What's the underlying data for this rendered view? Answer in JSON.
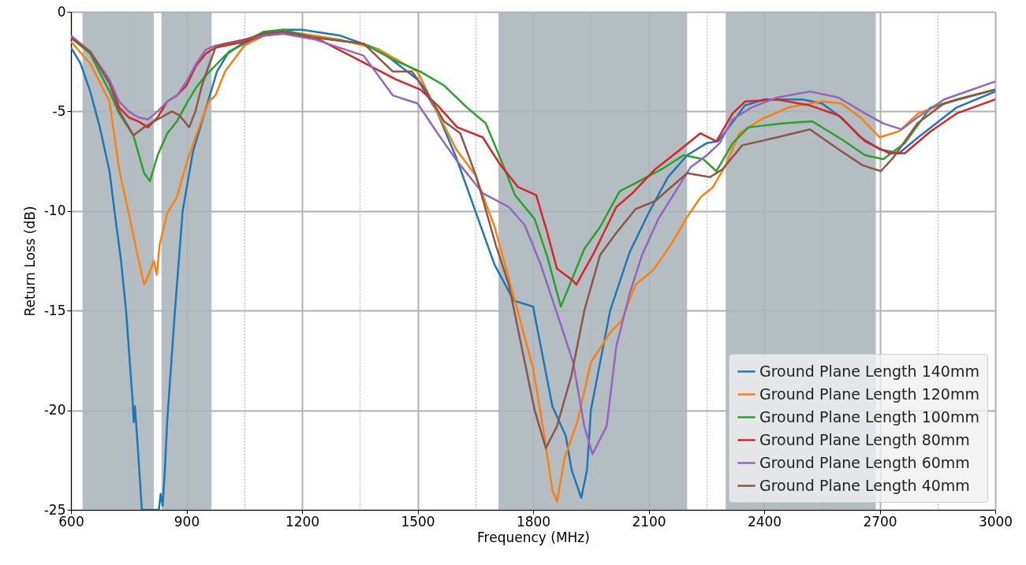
{
  "chart_data": {
    "type": "line",
    "xlabel": "Frequency (MHz)",
    "ylabel": "Return Loss (dB)",
    "xlim": [
      600,
      3000
    ],
    "ylim": [
      -25,
      0
    ],
    "xticks": [
      600,
      {
        "value": 750,
        "label": null
      },
      900,
      {
        "value": 1050,
        "label": null
      },
      1200,
      {
        "value": 1350,
        "label": null
      },
      1500,
      {
        "value": 1650,
        "label": null
      },
      1800,
      {
        "value": 1950,
        "label": null
      },
      2100,
      {
        "value": 2250,
        "label": null
      },
      2400,
      {
        "value": 2550,
        "label": null
      },
      2700,
      {
        "value": 2850,
        "label": null
      },
      3000
    ],
    "yticks": [
      -25,
      -20,
      -15,
      -10,
      -5,
      0
    ],
    "grid": true,
    "legend": "bottom right",
    "line_style": "solid",
    "marker": "none",
    "bands": [
      {
        "axis": "x",
        "from": 630,
        "to": 815,
        "color": "#aab4ba"
      },
      {
        "axis": "x",
        "from": 835,
        "to": 965,
        "color": "#aab4ba"
      },
      {
        "axis": "x",
        "from": 1710,
        "to": 2200,
        "color": "#aab4ba"
      },
      {
        "axis": "x",
        "from": 2300,
        "to": 2690,
        "color": "#aab4ba"
      }
    ],
    "series": [
      {
        "name": "Ground Plane Length 140mm",
        "color": "#1f77b4",
        "x": [
          600,
          625,
          650,
          675,
          700,
          713,
          730,
          743,
          760,
          763,
          766,
          774,
          784,
          828,
          833,
          838,
          843,
          850,
          870,
          890,
          917,
          948,
          979,
          1010,
          1050,
          1100,
          1150,
          1200,
          1300,
          1400,
          1500,
          1550,
          1600,
          1650,
          1700,
          1750,
          1800,
          1820,
          1850,
          1885,
          1900,
          1925,
          1940,
          1950,
          2000,
          2050,
          2100,
          2150,
          2200,
          2250,
          2280,
          2320,
          2350,
          2400,
          2500,
          2550,
          2600,
          2650,
          2700,
          2750,
          2800,
          2900,
          3000
        ],
        "values": [
          -1.8,
          -2.6,
          -4.0,
          -5.8,
          -8.0,
          -10.0,
          -12.5,
          -15.0,
          -19.5,
          -20.6,
          -19.8,
          -22.0,
          -25.0,
          -25.0,
          -24.2,
          -24.8,
          -23.3,
          -20.5,
          -15.0,
          -10.0,
          -7.0,
          -5.0,
          -3.0,
          -2.0,
          -1.6,
          -1.1,
          -0.9,
          -0.9,
          -1.2,
          -1.9,
          -3.4,
          -5.0,
          -7.3,
          -10.0,
          -12.7,
          -14.5,
          -14.8,
          -16.8,
          -19.8,
          -21.3,
          -23.0,
          -24.4,
          -23.0,
          -20.0,
          -15.0,
          -12.1,
          -10.1,
          -8.3,
          -7.2,
          -6.6,
          -6.5,
          -5.5,
          -4.7,
          -4.4,
          -4.4,
          -4.6,
          -5.3,
          -6.3,
          -6.9,
          -7.1,
          -6.3,
          -4.8,
          -4.0
        ]
      },
      {
        "name": "Ground Plane Length 120mm",
        "color": "#ff7f0e",
        "x": [
          600,
          650,
          700,
          725,
          750,
          765,
          775,
          790,
          800,
          815,
          823,
          830,
          850,
          875,
          900,
          925,
          958,
          975,
          1000,
          1050,
          1100,
          1150,
          1200,
          1300,
          1400,
          1500,
          1550,
          1600,
          1650,
          1700,
          1750,
          1800,
          1825,
          1850,
          1862,
          1882,
          1916,
          1950,
          2000,
          2030,
          2066,
          2110,
          2140,
          2167,
          2200,
          2235,
          2267,
          2300,
          2335,
          2392,
          2463,
          2550,
          2600,
          2650,
          2700,
          2750,
          2800,
          2900,
          3000
        ],
        "values": [
          -1.5,
          -2.6,
          -4.5,
          -7.9,
          -10.1,
          -11.5,
          -12.4,
          -13.7,
          -13.3,
          -12.5,
          -13.2,
          -11.7,
          -10.1,
          -9.3,
          -7.6,
          -6.2,
          -4.5,
          -4.2,
          -3.0,
          -1.7,
          -1.2,
          -1.0,
          -1.1,
          -1.4,
          -1.9,
          -3.0,
          -5.0,
          -6.9,
          -8.2,
          -10.8,
          -14.3,
          -17.9,
          -20.8,
          -24.0,
          -24.6,
          -22.4,
          -20.5,
          -17.6,
          -16.1,
          -15.5,
          -13.7,
          -13.0,
          -12.2,
          -11.4,
          -10.3,
          -9.3,
          -8.8,
          -7.7,
          -6.1,
          -5.4,
          -4.8,
          -4.5,
          -4.6,
          -5.3,
          -6.3,
          -6.0,
          -5.1,
          -4.4,
          -3.9
        ]
      },
      {
        "name": "Ground Plane Length 100mm",
        "color": "#2ca02c",
        "x": [
          600,
          650,
          700,
          725,
          762,
          790,
          805,
          825,
          850,
          875,
          900,
          925,
          950,
          975,
          1000,
          1050,
          1100,
          1150,
          1235,
          1360,
          1436,
          1507,
          1569,
          1628,
          1677,
          1720,
          1753,
          1804,
          1837,
          1872,
          1933,
          1974,
          2025,
          2066,
          2134,
          2191,
          2242,
          2276,
          2318,
          2359,
          2450,
          2525,
          2601,
          2662,
          2709,
          2765,
          2832,
          2900,
          3000
        ],
        "values": [
          -1.3,
          -2.1,
          -4.0,
          -5.1,
          -6.2,
          -8.1,
          -8.5,
          -7.2,
          -6.1,
          -5.5,
          -4.6,
          -3.8,
          -3.2,
          -2.7,
          -2.2,
          -1.5,
          -1.0,
          -0.9,
          -1.3,
          -1.6,
          -2.4,
          -3.0,
          -3.7,
          -4.8,
          -5.6,
          -7.6,
          -9.2,
          -10.4,
          -12.3,
          -14.8,
          -11.9,
          -10.8,
          -9.0,
          -8.6,
          -7.9,
          -7.2,
          -7.4,
          -8.0,
          -6.6,
          -5.8,
          -5.6,
          -5.5,
          -6.4,
          -7.2,
          -7.4,
          -6.6,
          -4.8,
          -4.4,
          -3.9
        ]
      },
      {
        "name": "Ground Plane Length 80mm",
        "color": "#d62728",
        "x": [
          600,
          650,
          700,
          725,
          750,
          775,
          800,
          825,
          850,
          875,
          900,
          925,
          950,
          975,
          1000,
          1050,
          1100,
          1150,
          1235,
          1345,
          1444,
          1507,
          1552,
          1603,
          1669,
          1712,
          1761,
          1808,
          1837,
          1862,
          1904,
          1912,
          1958,
          2016,
          2058,
          2117,
          2183,
          2234,
          2276,
          2318,
          2351,
          2434,
          2519,
          2593,
          2662,
          2724,
          2765,
          2832,
          2900,
          3000
        ],
        "values": [
          -1.3,
          -2.0,
          -3.5,
          -4.8,
          -5.3,
          -5.5,
          -5.8,
          -5.3,
          -4.5,
          -4.2,
          -3.7,
          -2.7,
          -2.1,
          -1.8,
          -1.7,
          -1.5,
          -1.2,
          -1.1,
          -1.3,
          -2.4,
          -3.4,
          -3.9,
          -4.7,
          -5.8,
          -6.3,
          -7.6,
          -8.8,
          -9.2,
          -11.1,
          -12.9,
          -13.5,
          -13.7,
          -12.1,
          -9.8,
          -9.1,
          -7.9,
          -6.9,
          -6.1,
          -6.5,
          -5.1,
          -4.5,
          -4.4,
          -4.7,
          -5.2,
          -6.5,
          -7.1,
          -7.1,
          -6.0,
          -5.1,
          -4.4
        ]
      },
      {
        "name": "Ground Plane Length 60mm",
        "color": "#9467bd",
        "x": [
          600,
          650,
          700,
          725,
          750,
          775,
          800,
          825,
          850,
          875,
          900,
          925,
          950,
          975,
          1000,
          1050,
          1100,
          1150,
          1235,
          1360,
          1436,
          1500,
          1552,
          1603,
          1669,
          1737,
          1778,
          1820,
          1870,
          1904,
          1933,
          1954,
          1991,
          2016,
          2050,
          2083,
          2125,
          2167,
          2209,
          2251,
          2284,
          2318,
          2367,
          2434,
          2519,
          2593,
          2662,
          2709,
          2757,
          2798,
          2867,
          3000
        ],
        "values": [
          -1.2,
          -2.0,
          -3.4,
          -4.5,
          -5.0,
          -5.3,
          -5.4,
          -5.0,
          -4.5,
          -4.2,
          -3.5,
          -2.6,
          -1.9,
          -1.7,
          -1.6,
          -1.4,
          -1.2,
          -1.1,
          -1.4,
          -2.2,
          -4.2,
          -4.6,
          -6.1,
          -7.5,
          -9.1,
          -9.8,
          -10.7,
          -12.7,
          -15.6,
          -17.6,
          -20.8,
          -22.2,
          -20.8,
          -16.8,
          -14.2,
          -12.2,
          -10.4,
          -9.1,
          -7.8,
          -7.2,
          -6.6,
          -5.4,
          -4.8,
          -4.3,
          -4.0,
          -4.3,
          -5.1,
          -5.6,
          -5.9,
          -5.3,
          -4.4,
          -3.5
        ]
      },
      {
        "name": "Ground Plane Length 40mm",
        "color": "#8c564b",
        "x": [
          600,
          650,
          700,
          723,
          762,
          790,
          815,
          862,
          882,
          907,
          923,
          940,
          958,
          975,
          1000,
          1050,
          1100,
          1150,
          1235,
          1360,
          1436,
          1485,
          1520,
          1569,
          1611,
          1653,
          1703,
          1737,
          1770,
          1804,
          1833,
          1862,
          1899,
          1933,
          1974,
          2016,
          2066,
          2117,
          2158,
          2200,
          2259,
          2292,
          2343,
          2434,
          2519,
          2593,
          2655,
          2703,
          2736,
          2798,
          2867,
          3000
        ],
        "values": [
          -1.3,
          -2.0,
          -3.6,
          -4.9,
          -6.2,
          -5.8,
          -5.5,
          -5.0,
          -5.2,
          -5.8,
          -5.0,
          -3.7,
          -2.7,
          -1.8,
          -1.6,
          -1.4,
          -1.1,
          -1.0,
          -1.3,
          -1.6,
          -3.0,
          -3.0,
          -3.9,
          -5.5,
          -6.1,
          -8.3,
          -11.7,
          -13.7,
          -16.8,
          -20.0,
          -21.9,
          -20.8,
          -18.3,
          -15.0,
          -12.2,
          -11.1,
          -9.9,
          -9.5,
          -8.8,
          -8.1,
          -8.3,
          -7.9,
          -6.7,
          -6.3,
          -5.9,
          -6.9,
          -7.7,
          -8.0,
          -7.3,
          -5.6,
          -4.6,
          -3.9
        ]
      }
    ]
  }
}
